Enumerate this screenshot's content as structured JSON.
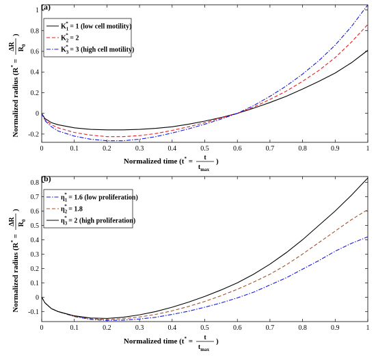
{
  "chart_data": [
    {
      "type": "line",
      "panel_label": "(a)",
      "xlabel": "Normalized time (t* = t / t_max)",
      "xlabel_parts": {
        "prefix": "Normalized time (t",
        "sup": "*",
        "eq": " = ",
        "num": "t",
        "den": "t",
        "den_sub": "max",
        "suffix": ")"
      },
      "ylabel": "Normalized radius (R* = ΔR / R0)",
      "ylabel_parts": {
        "prefix": "Normalized radius (R",
        "sup": "*",
        "eq": " = ",
        "num": "ΔR",
        "den": "R",
        "den_sub": "0",
        "suffix": ")"
      },
      "xlim": [
        0,
        1
      ],
      "ylim": [
        -0.28,
        1.05
      ],
      "xticks": [
        "0",
        "0.1",
        "0.2",
        "0.3",
        "0.4",
        "0.5",
        "0.6",
        "0.7",
        "0.8",
        "0.9",
        "1"
      ],
      "yticks": [
        "-0.2",
        "0",
        "0.2",
        "0.4",
        "0.6",
        "0.8",
        "1"
      ],
      "grid": false,
      "legend_position": "top-left",
      "x": [
        0,
        0.01,
        0.03,
        0.05,
        0.1,
        0.15,
        0.2,
        0.25,
        0.3,
        0.35,
        0.4,
        0.45,
        0.5,
        0.55,
        0.6,
        0.65,
        0.7,
        0.75,
        0.8,
        0.85,
        0.9,
        0.95,
        1.0
      ],
      "series": [
        {
          "name": "K1* = 1 (low cell motility)",
          "label": {
            "main": "K",
            "sub": "1",
            "sup": "*",
            "rest": " = 1 (low cell motility)"
          },
          "color": "#000000",
          "dash": "solid",
          "values": [
            0,
            -0.05,
            -0.09,
            -0.11,
            -0.14,
            -0.155,
            -0.16,
            -0.16,
            -0.155,
            -0.145,
            -0.13,
            -0.105,
            -0.075,
            -0.04,
            0.0,
            0.05,
            0.105,
            0.165,
            0.235,
            0.31,
            0.39,
            0.49,
            0.61
          ]
        },
        {
          "name": "K2* = 2",
          "label": {
            "main": "K",
            "sub": "2",
            "sup": "*",
            "rest": " = 2"
          },
          "color": "#e8191c",
          "dash": "dashed",
          "values": [
            0,
            -0.06,
            -0.11,
            -0.14,
            -0.185,
            -0.21,
            -0.225,
            -0.225,
            -0.215,
            -0.195,
            -0.165,
            -0.13,
            -0.09,
            -0.045,
            0.0,
            0.06,
            0.135,
            0.215,
            0.31,
            0.415,
            0.54,
            0.69,
            0.86
          ]
        },
        {
          "name": "K3* = 3 (high cell motility)",
          "label": {
            "main": "K",
            "sub": "3",
            "sup": "*",
            "rest": " = 3 (high cell motility)"
          },
          "color": "#1414e6",
          "dash": "dashdot",
          "values": [
            0,
            -0.07,
            -0.13,
            -0.17,
            -0.22,
            -0.25,
            -0.265,
            -0.265,
            -0.25,
            -0.225,
            -0.19,
            -0.15,
            -0.105,
            -0.055,
            0.0,
            0.075,
            0.165,
            0.265,
            0.38,
            0.51,
            0.66,
            0.84,
            1.05
          ]
        }
      ]
    },
    {
      "type": "line",
      "panel_label": "(b)",
      "xlabel": "Normalized time (t* = t / t_max)",
      "xlabel_parts": {
        "prefix": "Normalized time (t",
        "sup": "*",
        "eq": " = ",
        "num": "t",
        "den": "t",
        "den_sub": "max",
        "suffix": ")"
      },
      "ylabel": "Normalized radius (R* = ΔR / R0)",
      "ylabel_parts": {
        "prefix": "Normalized radius (R",
        "sup": "*",
        "eq": " = ",
        "num": "ΔR",
        "den": "R",
        "den_sub": "0",
        "suffix": ")"
      },
      "xlim": [
        0,
        1
      ],
      "ylim": [
        -0.17,
        0.84
      ],
      "xticks": [
        "0",
        "0.1",
        "0.2",
        "0.3",
        "0.4",
        "0.5",
        "0.6",
        "0.7",
        "0.8",
        "0.9",
        "1"
      ],
      "yticks": [
        "-0.1",
        "0",
        "0.1",
        "0.2",
        "0.3",
        "0.4",
        "0.5",
        "0.6",
        "0.7",
        "0.8"
      ],
      "grid": false,
      "legend_position": "top-left",
      "x": [
        0,
        0.01,
        0.03,
        0.05,
        0.1,
        0.15,
        0.2,
        0.25,
        0.3,
        0.35,
        0.4,
        0.45,
        0.5,
        0.55,
        0.6,
        0.65,
        0.7,
        0.75,
        0.8,
        0.85,
        0.9,
        0.95,
        1.0
      ],
      "series": [
        {
          "name": "η1* = 1.6 (low proliferation)",
          "label": {
            "main": "η",
            "sub": "1",
            "sup": "*",
            "rest": " = 1.6 (low proliferation)"
          },
          "color": "#1414e6",
          "dash": "dashdot",
          "values": [
            0,
            -0.04,
            -0.08,
            -0.1,
            -0.135,
            -0.155,
            -0.162,
            -0.16,
            -0.152,
            -0.14,
            -0.12,
            -0.098,
            -0.07,
            -0.04,
            -0.005,
            0.035,
            0.085,
            0.135,
            0.195,
            0.255,
            0.32,
            0.375,
            0.42
          ]
        },
        {
          "name": "η2* = 1.8",
          "label": {
            "main": "η",
            "sub": "2",
            "sup": "*",
            "rest": " = 1.8"
          },
          "color": "#a0522d",
          "dash": "dashed",
          "values": [
            0,
            -0.04,
            -0.08,
            -0.1,
            -0.133,
            -0.15,
            -0.155,
            -0.15,
            -0.138,
            -0.12,
            -0.095,
            -0.065,
            -0.03,
            0.01,
            0.055,
            0.105,
            0.16,
            0.225,
            0.3,
            0.38,
            0.46,
            0.54,
            0.61
          ]
        },
        {
          "name": "η3* = 2 (high proliferation)",
          "label": {
            "main": "η",
            "sub": "3",
            "sup": "*",
            "rest": " = 2 (high proliferation)"
          },
          "color": "#000000",
          "dash": "solid",
          "values": [
            0,
            -0.04,
            -0.08,
            -0.1,
            -0.13,
            -0.145,
            -0.148,
            -0.14,
            -0.123,
            -0.1,
            -0.07,
            -0.035,
            0.005,
            0.05,
            0.1,
            0.16,
            0.23,
            0.31,
            0.4,
            0.5,
            0.6,
            0.71,
            0.83
          ]
        }
      ]
    }
  ]
}
